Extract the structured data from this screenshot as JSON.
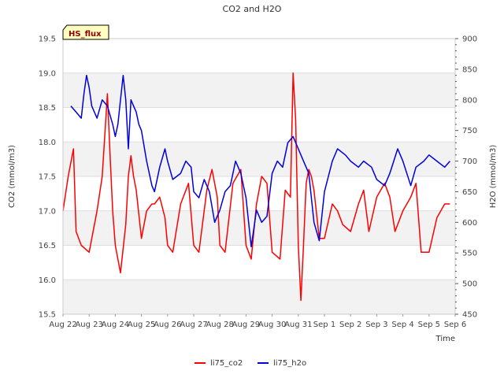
{
  "chart_data": {
    "type": "line",
    "title": "CO2 and H2O",
    "xlabel": "Time",
    "ylabel_left": "CO2 (mmol/m3)",
    "ylabel_right": "H2O (mmol/m3)",
    "badge": "HS_flux",
    "x_tick_labels": [
      "Aug 22",
      "Aug 23",
      "Aug 24",
      "Aug 25",
      "Aug 26",
      "Aug 27",
      "Aug 28",
      "Aug 29",
      "Aug 30",
      "Aug 31",
      "Sep 1",
      "Sep 2",
      "Sep 3",
      "Sep 4",
      "Sep 5",
      "Sep 6"
    ],
    "x_range_days": [
      0,
      15
    ],
    "y_left_ticks": [
      "15.5",
      "16.0",
      "16.5",
      "17.0",
      "17.5",
      "18.0",
      "18.5",
      "19.0",
      "19.5"
    ],
    "y_left_range": [
      15.5,
      19.5
    ],
    "y_right_ticks": [
      "450",
      "500",
      "550",
      "600",
      "650",
      "700",
      "750",
      "800",
      "850",
      "900"
    ],
    "y_right_range": [
      450,
      900
    ],
    "grid": true,
    "legend_position": "bottom-center",
    "colors": {
      "li75_co2": "#ff0000",
      "li75_h2o": "#0000dd",
      "band": "#f2f2f2",
      "badge_bg": "#ffffc0"
    },
    "series": [
      {
        "name": "li75_co2",
        "axis": "left",
        "x": [
          0.0,
          0.2,
          0.4,
          0.5,
          0.7,
          1.0,
          1.3,
          1.5,
          1.7,
          1.8,
          1.9,
          2.0,
          2.2,
          2.4,
          2.5,
          2.6,
          2.7,
          2.8,
          3.0,
          3.2,
          3.4,
          3.5,
          3.7,
          3.9,
          4.0,
          4.2,
          4.5,
          4.8,
          5.0,
          5.2,
          5.5,
          5.7,
          5.9,
          6.0,
          6.2,
          6.5,
          6.8,
          7.0,
          7.2,
          7.4,
          7.6,
          7.8,
          8.0,
          8.3,
          8.5,
          8.7,
          8.8,
          8.9,
          9.0,
          9.1,
          9.2,
          9.3,
          9.4,
          9.5,
          9.6,
          9.8,
          10.0,
          10.3,
          10.5,
          10.7,
          11.0,
          11.3,
          11.5,
          11.7,
          12.0,
          12.3,
          12.5,
          12.7,
          13.0,
          13.3,
          13.5,
          13.7,
          14.0,
          14.3,
          14.6,
          14.8
        ],
        "values": [
          17.0,
          17.5,
          17.9,
          16.7,
          16.5,
          16.4,
          17.0,
          17.5,
          18.7,
          17.8,
          17.0,
          16.5,
          16.1,
          16.8,
          17.5,
          17.8,
          17.5,
          17.3,
          16.6,
          17.0,
          17.1,
          17.1,
          17.2,
          16.9,
          16.5,
          16.4,
          17.1,
          17.4,
          16.5,
          16.4,
          17.3,
          17.6,
          17.2,
          16.5,
          16.4,
          17.4,
          17.6,
          16.5,
          16.3,
          17.1,
          17.5,
          17.4,
          16.4,
          16.3,
          17.3,
          17.2,
          19.0,
          18.3,
          16.5,
          15.7,
          16.5,
          17.4,
          17.6,
          17.5,
          17.3,
          16.6,
          16.6,
          17.1,
          17.0,
          16.8,
          16.7,
          17.1,
          17.3,
          16.7,
          17.2,
          17.4,
          17.2,
          16.7,
          17.0,
          17.2,
          17.4,
          16.4,
          16.4,
          16.9,
          17.1,
          17.1
        ]
      },
      {
        "name": "li75_h2o",
        "axis": "right",
        "x": [
          0.3,
          0.5,
          0.7,
          0.8,
          0.9,
          1.0,
          1.1,
          1.3,
          1.5,
          1.7,
          1.9,
          2.0,
          2.1,
          2.2,
          2.3,
          2.4,
          2.5,
          2.6,
          2.7,
          2.8,
          2.9,
          3.0,
          3.2,
          3.4,
          3.5,
          3.7,
          3.9,
          4.0,
          4.2,
          4.5,
          4.7,
          4.9,
          5.0,
          5.2,
          5.4,
          5.6,
          5.8,
          6.0,
          6.2,
          6.4,
          6.6,
          6.8,
          7.0,
          7.2,
          7.4,
          7.6,
          7.8,
          8.0,
          8.2,
          8.4,
          8.6,
          8.8,
          9.0,
          9.2,
          9.4,
          9.6,
          9.8,
          10.0,
          10.3,
          10.5,
          10.8,
          11.0,
          11.3,
          11.5,
          11.8,
          12.0,
          12.3,
          12.5,
          12.8,
          13.0,
          13.3,
          13.5,
          13.8,
          14.0,
          14.3,
          14.6,
          14.8
        ],
        "values": [
          790,
          780,
          770,
          810,
          840,
          820,
          790,
          770,
          800,
          790,
          760,
          740,
          760,
          800,
          840,
          800,
          720,
          800,
          790,
          780,
          760,
          750,
          700,
          660,
          650,
          690,
          720,
          700,
          670,
          680,
          700,
          690,
          650,
          640,
          670,
          650,
          600,
          620,
          650,
          660,
          700,
          680,
          640,
          560,
          620,
          600,
          610,
          680,
          700,
          690,
          730,
          740,
          720,
          700,
          680,
          600,
          570,
          650,
          700,
          720,
          710,
          700,
          690,
          700,
          690,
          670,
          660,
          680,
          720,
          700,
          660,
          690,
          700,
          710,
          700,
          690,
          700
        ]
      }
    ]
  },
  "legend": {
    "items": [
      "li75_co2",
      "li75_h2o"
    ]
  }
}
